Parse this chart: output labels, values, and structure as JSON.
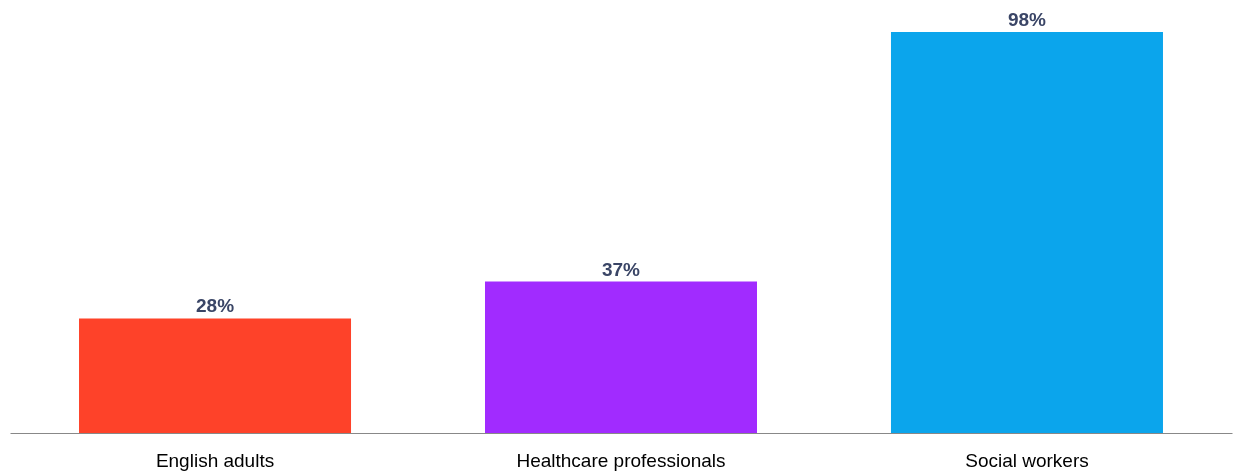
{
  "chart_data": {
    "type": "bar",
    "categories": [
      "English adults",
      "Healthcare professionals",
      "Social workers"
    ],
    "values": [
      28,
      37,
      98
    ],
    "colors": [
      "#fe4229",
      "#a12bff",
      "#0ba5ec"
    ],
    "value_labels": [
      "28%",
      "37%",
      "98%"
    ],
    "grid": false
  }
}
